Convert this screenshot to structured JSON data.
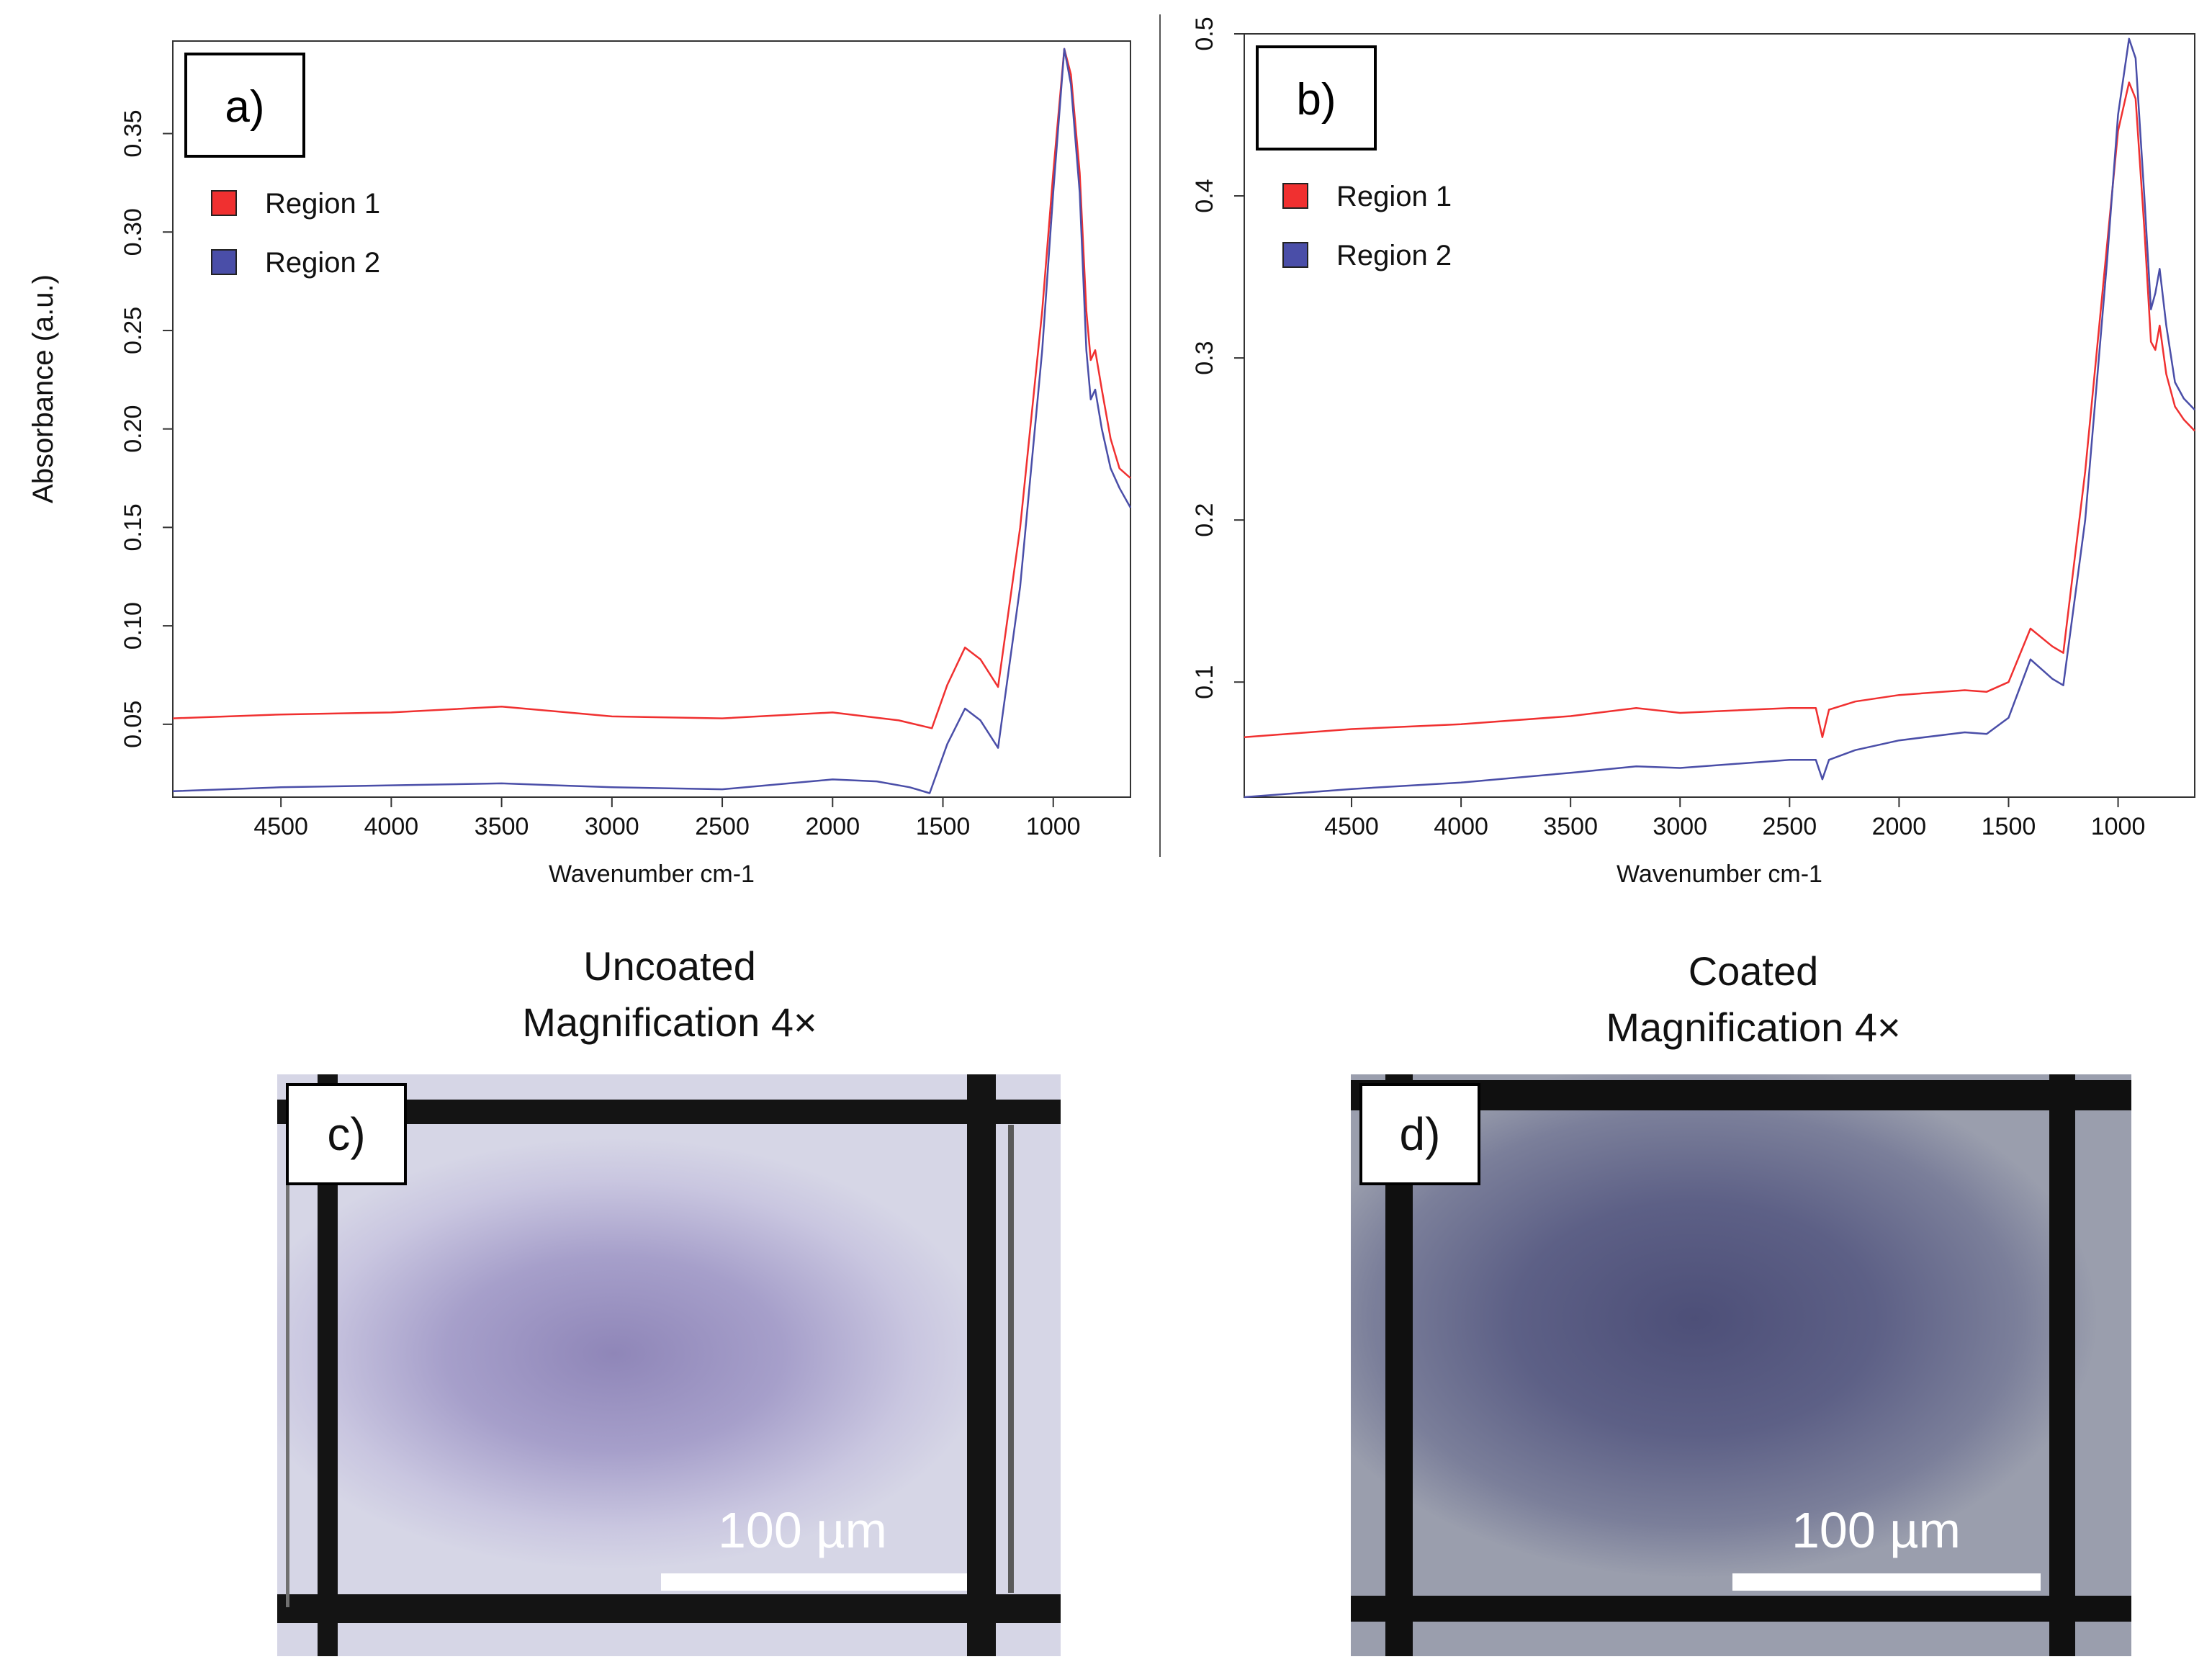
{
  "colors": {
    "region1": "#f03030",
    "region2": "#4a4ea8"
  },
  "shared": {
    "ylabel": "Absorbance (a.u.)"
  },
  "chart_data": [
    {
      "type": "line",
      "panel_label": "a)",
      "xlabel": "Wavenumber cm-1",
      "ylabel": "Absorbance (a.u.)",
      "xlim": [
        4990,
        650
      ],
      "ylim": [
        0.013,
        0.397
      ],
      "xticks": [
        "4500",
        "4000",
        "3500",
        "3000",
        "2500",
        "2000",
        "1500",
        "1000"
      ],
      "yticks": [
        "0.05",
        "0.10",
        "0.15",
        "0.20",
        "0.25",
        "0.30",
        "0.35"
      ],
      "legend": [
        "Region 1",
        "Region 2"
      ],
      "series": [
        {
          "name": "Region 1",
          "color": "#f03030",
          "x": [
            4990,
            4500,
            4000,
            3500,
            3000,
            2500,
            2000,
            1700,
            1550,
            1480,
            1400,
            1330,
            1250,
            1150,
            1050,
            1000,
            950,
            920,
            880,
            850,
            830,
            810,
            780,
            740,
            700,
            650
          ],
          "y": [
            0.053,
            0.055,
            0.056,
            0.059,
            0.054,
            0.053,
            0.056,
            0.052,
            0.048,
            0.07,
            0.089,
            0.083,
            0.069,
            0.15,
            0.26,
            0.33,
            0.393,
            0.38,
            0.33,
            0.26,
            0.235,
            0.24,
            0.22,
            0.195,
            0.18,
            0.175
          ]
        },
        {
          "name": "Region 2",
          "color": "#4a4ea8",
          "x": [
            4990,
            4500,
            4000,
            3500,
            3000,
            2500,
            2000,
            1800,
            1650,
            1560,
            1480,
            1400,
            1330,
            1250,
            1150,
            1050,
            1000,
            950,
            920,
            880,
            850,
            830,
            810,
            780,
            740,
            700,
            650
          ],
          "y": [
            0.016,
            0.018,
            0.019,
            0.02,
            0.018,
            0.017,
            0.022,
            0.021,
            0.018,
            0.015,
            0.04,
            0.058,
            0.052,
            0.038,
            0.12,
            0.24,
            0.32,
            0.393,
            0.375,
            0.32,
            0.24,
            0.215,
            0.22,
            0.2,
            0.18,
            0.17,
            0.16
          ]
        }
      ]
    },
    {
      "type": "line",
      "panel_label": "b)",
      "xlabel": "Wavenumber cm-1",
      "ylabel": "",
      "xlim": [
        4990,
        650
      ],
      "ylim": [
        0.029,
        0.5
      ],
      "xticks": [
        "4500",
        "4000",
        "3500",
        "3000",
        "2500",
        "2000",
        "1500",
        "1000"
      ],
      "yticks": [
        "0.1",
        "0.2",
        "0.3",
        "0.4",
        "0.5"
      ],
      "legend": [
        "Region 1",
        "Region 2"
      ],
      "series": [
        {
          "name": "Region 1",
          "color": "#f03030",
          "x": [
            4990,
            4500,
            4000,
            3500,
            3200,
            3000,
            2500,
            2380,
            2350,
            2320,
            2200,
            2000,
            1700,
            1600,
            1500,
            1400,
            1300,
            1250,
            1150,
            1050,
            1000,
            950,
            920,
            880,
            850,
            830,
            810,
            780,
            740,
            700,
            650
          ],
          "y": [
            0.066,
            0.071,
            0.074,
            0.079,
            0.084,
            0.081,
            0.084,
            0.084,
            0.066,
            0.083,
            0.088,
            0.092,
            0.095,
            0.094,
            0.1,
            0.133,
            0.122,
            0.118,
            0.23,
            0.37,
            0.44,
            0.47,
            0.46,
            0.38,
            0.31,
            0.305,
            0.32,
            0.29,
            0.27,
            0.262,
            0.255
          ]
        },
        {
          "name": "Region 2",
          "color": "#4a4ea8",
          "x": [
            4990,
            4500,
            4000,
            3500,
            3200,
            3000,
            2500,
            2380,
            2350,
            2320,
            2200,
            2000,
            1700,
            1600,
            1500,
            1400,
            1300,
            1250,
            1150,
            1050,
            1000,
            950,
            920,
            880,
            850,
            830,
            810,
            780,
            740,
            700,
            650
          ],
          "y": [
            0.029,
            0.034,
            0.038,
            0.044,
            0.048,
            0.047,
            0.052,
            0.052,
            0.04,
            0.052,
            0.058,
            0.064,
            0.069,
            0.068,
            0.078,
            0.114,
            0.102,
            0.098,
            0.2,
            0.36,
            0.45,
            0.497,
            0.485,
            0.4,
            0.33,
            0.34,
            0.355,
            0.32,
            0.285,
            0.275,
            0.268
          ]
        }
      ]
    }
  ],
  "images": [
    {
      "panel_label": "c)",
      "caption_line1": "Uncoated",
      "caption_line2": "Magnification 4×",
      "scale_label": "100 µm"
    },
    {
      "panel_label": "d)",
      "caption_line1": "Coated",
      "caption_line2": "Magnification 4×",
      "scale_label": "100 µm"
    }
  ]
}
